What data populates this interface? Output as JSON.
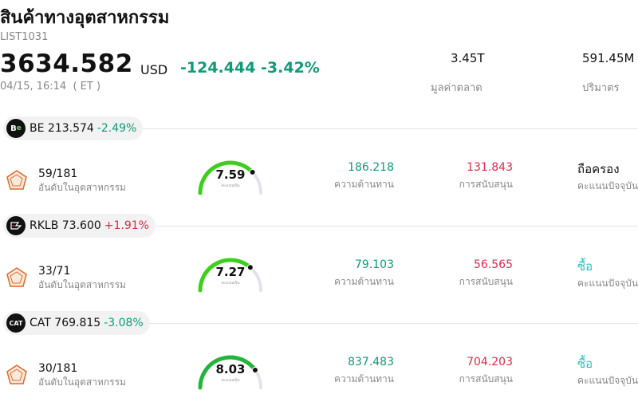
{
  "header": {
    "title": "สินค้าทางอุตสาหกรรม",
    "list_id": "LIST1031",
    "price": "3634.582",
    "currency": "USD",
    "change": "-124.444 -3.42%",
    "timestamp": "04/15, 16:14  ( ET )"
  },
  "stats": {
    "market_cap_value": "3.45T",
    "market_cap_label": "มูลค่าตลาด",
    "volume_value": "591.45M",
    "volume_label": "ปริมาตร"
  },
  "colors": {
    "negative": "#0f9a78",
    "positive": "#e0294a",
    "buy": "#2bbfc1"
  },
  "stocks": [
    {
      "symbol": "BE",
      "price": "213.574",
      "change": "-2.49%",
      "logo_icon": "be-logo-icon",
      "rank": "59/181",
      "rank_label": "อันดับในอุตสาหกรรม",
      "score": "7.59",
      "score_label": "คะแนนหุ้น",
      "score_level": 0.759,
      "resistance": "186.218",
      "resistance_label": "ความต้านทาน",
      "support": "131.843",
      "support_label": "การสนับสนุน",
      "rating": "ถือครอง",
      "rating_label": "คะแนนปัจจุบัน"
    },
    {
      "symbol": "RKLB",
      "price": "73.600",
      "change": "+1.91%",
      "logo_icon": "rklb-logo-icon",
      "rank": "33/71",
      "rank_label": "อันดับในอุตสาหกรรม",
      "score": "7.27",
      "score_label": "คะแนนหุ้น",
      "score_level": 0.727,
      "resistance": "79.103",
      "resistance_label": "ความต้านทาน",
      "support": "56.565",
      "support_label": "การสนับสนุน",
      "rating": "ซื้อ",
      "rating_label": "คะแนนปัจจุบัน"
    },
    {
      "symbol": "CAT",
      "price": "769.815",
      "change": "-3.08%",
      "logo_icon": "cat-logo-icon",
      "rank": "30/181",
      "rank_label": "อันดับในอุตสาหกรรม",
      "score": "8.03",
      "score_label": "คะแนนหุ้น",
      "score_level": 0.803,
      "resistance": "837.483",
      "resistance_label": "ความต้านทาน",
      "support": "704.203",
      "support_label": "การสนับสนุน",
      "rating": "ซื้อ",
      "rating_label": "คะแนนปัจจุบัน"
    }
  ]
}
